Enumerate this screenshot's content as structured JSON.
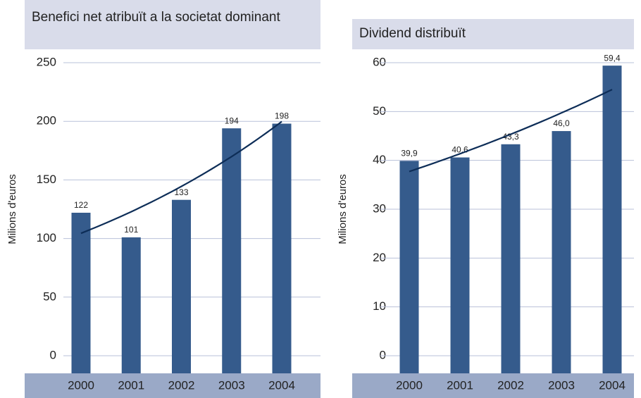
{
  "chart_data": [
    {
      "type": "bar",
      "title": "Benefici net atribuït a la societat dominant",
      "y_label": "Milions d'euros",
      "categories": [
        "2000",
        "2001",
        "2002",
        "2003",
        "2004"
      ],
      "values": [
        122,
        101,
        133,
        194,
        198
      ],
      "color": "#355b8c",
      "ylim": [
        0,
        250
      ],
      "yticks": [
        0,
        50,
        100,
        150,
        200,
        250
      ],
      "grid": true
    },
    {
      "type": "bar",
      "title": "Dividend distribuït",
      "y_label": "Milions d'euros",
      "categories": [
        "2000",
        "2001",
        "2002",
        "2003",
        "2004"
      ],
      "values": [
        39.9,
        40.6,
        43.3,
        46.0,
        59.4
      ],
      "value_labels": [
        "39,9",
        "40,6",
        "43,3",
        "46,0",
        "59,4"
      ],
      "color": "#355b8c",
      "ylim": [
        0,
        60
      ],
      "yticks": [
        0,
        10,
        20,
        30,
        40,
        50,
        60
      ],
      "grid": true
    }
  ]
}
